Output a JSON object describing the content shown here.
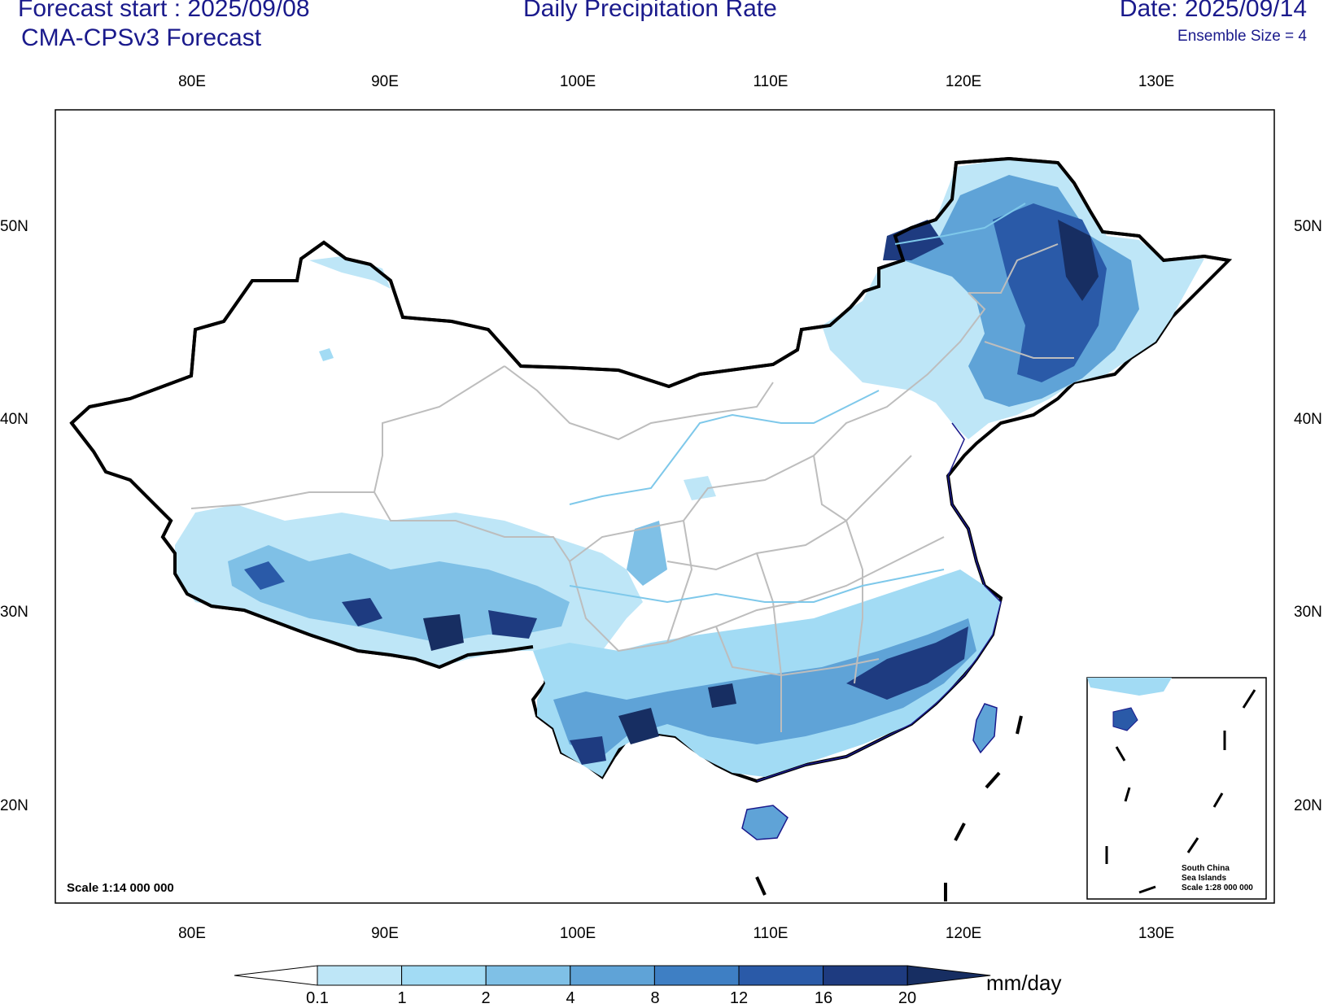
{
  "header": {
    "forecast_start": "Forecast start : 2025/09/08",
    "model": "CMA-CPSv3 Forecast",
    "title": "Daily Precipitation Rate",
    "date": "Date: 2025/09/14",
    "ensemble": "Ensemble Size = 4"
  },
  "axes": {
    "longitude_ticks": [
      "80E",
      "90E",
      "100E",
      "110E",
      "120E",
      "130E"
    ],
    "latitude_ticks": [
      "50N",
      "40N",
      "30N",
      "20N"
    ]
  },
  "map": {
    "scale_note": "Scale 1:14 000 000",
    "inset_lines": [
      "South China",
      "Sea Islands",
      "Scale 1:28 000 000"
    ],
    "boundary_color": "#000000",
    "province_color": "#bdbdbd",
    "river_color": "#7ec8ea"
  },
  "colorbar": {
    "levels": [
      "0.1",
      "1",
      "2",
      "4",
      "8",
      "12",
      "16",
      "20"
    ],
    "colors": [
      "#ffffff",
      "#bee6f7",
      "#a2dbf4",
      "#7fc0e6",
      "#5fa3d7",
      "#3e7fc4",
      "#2a5aa8",
      "#1e3b80",
      "#172e62"
    ],
    "unit": "mm/day"
  }
}
